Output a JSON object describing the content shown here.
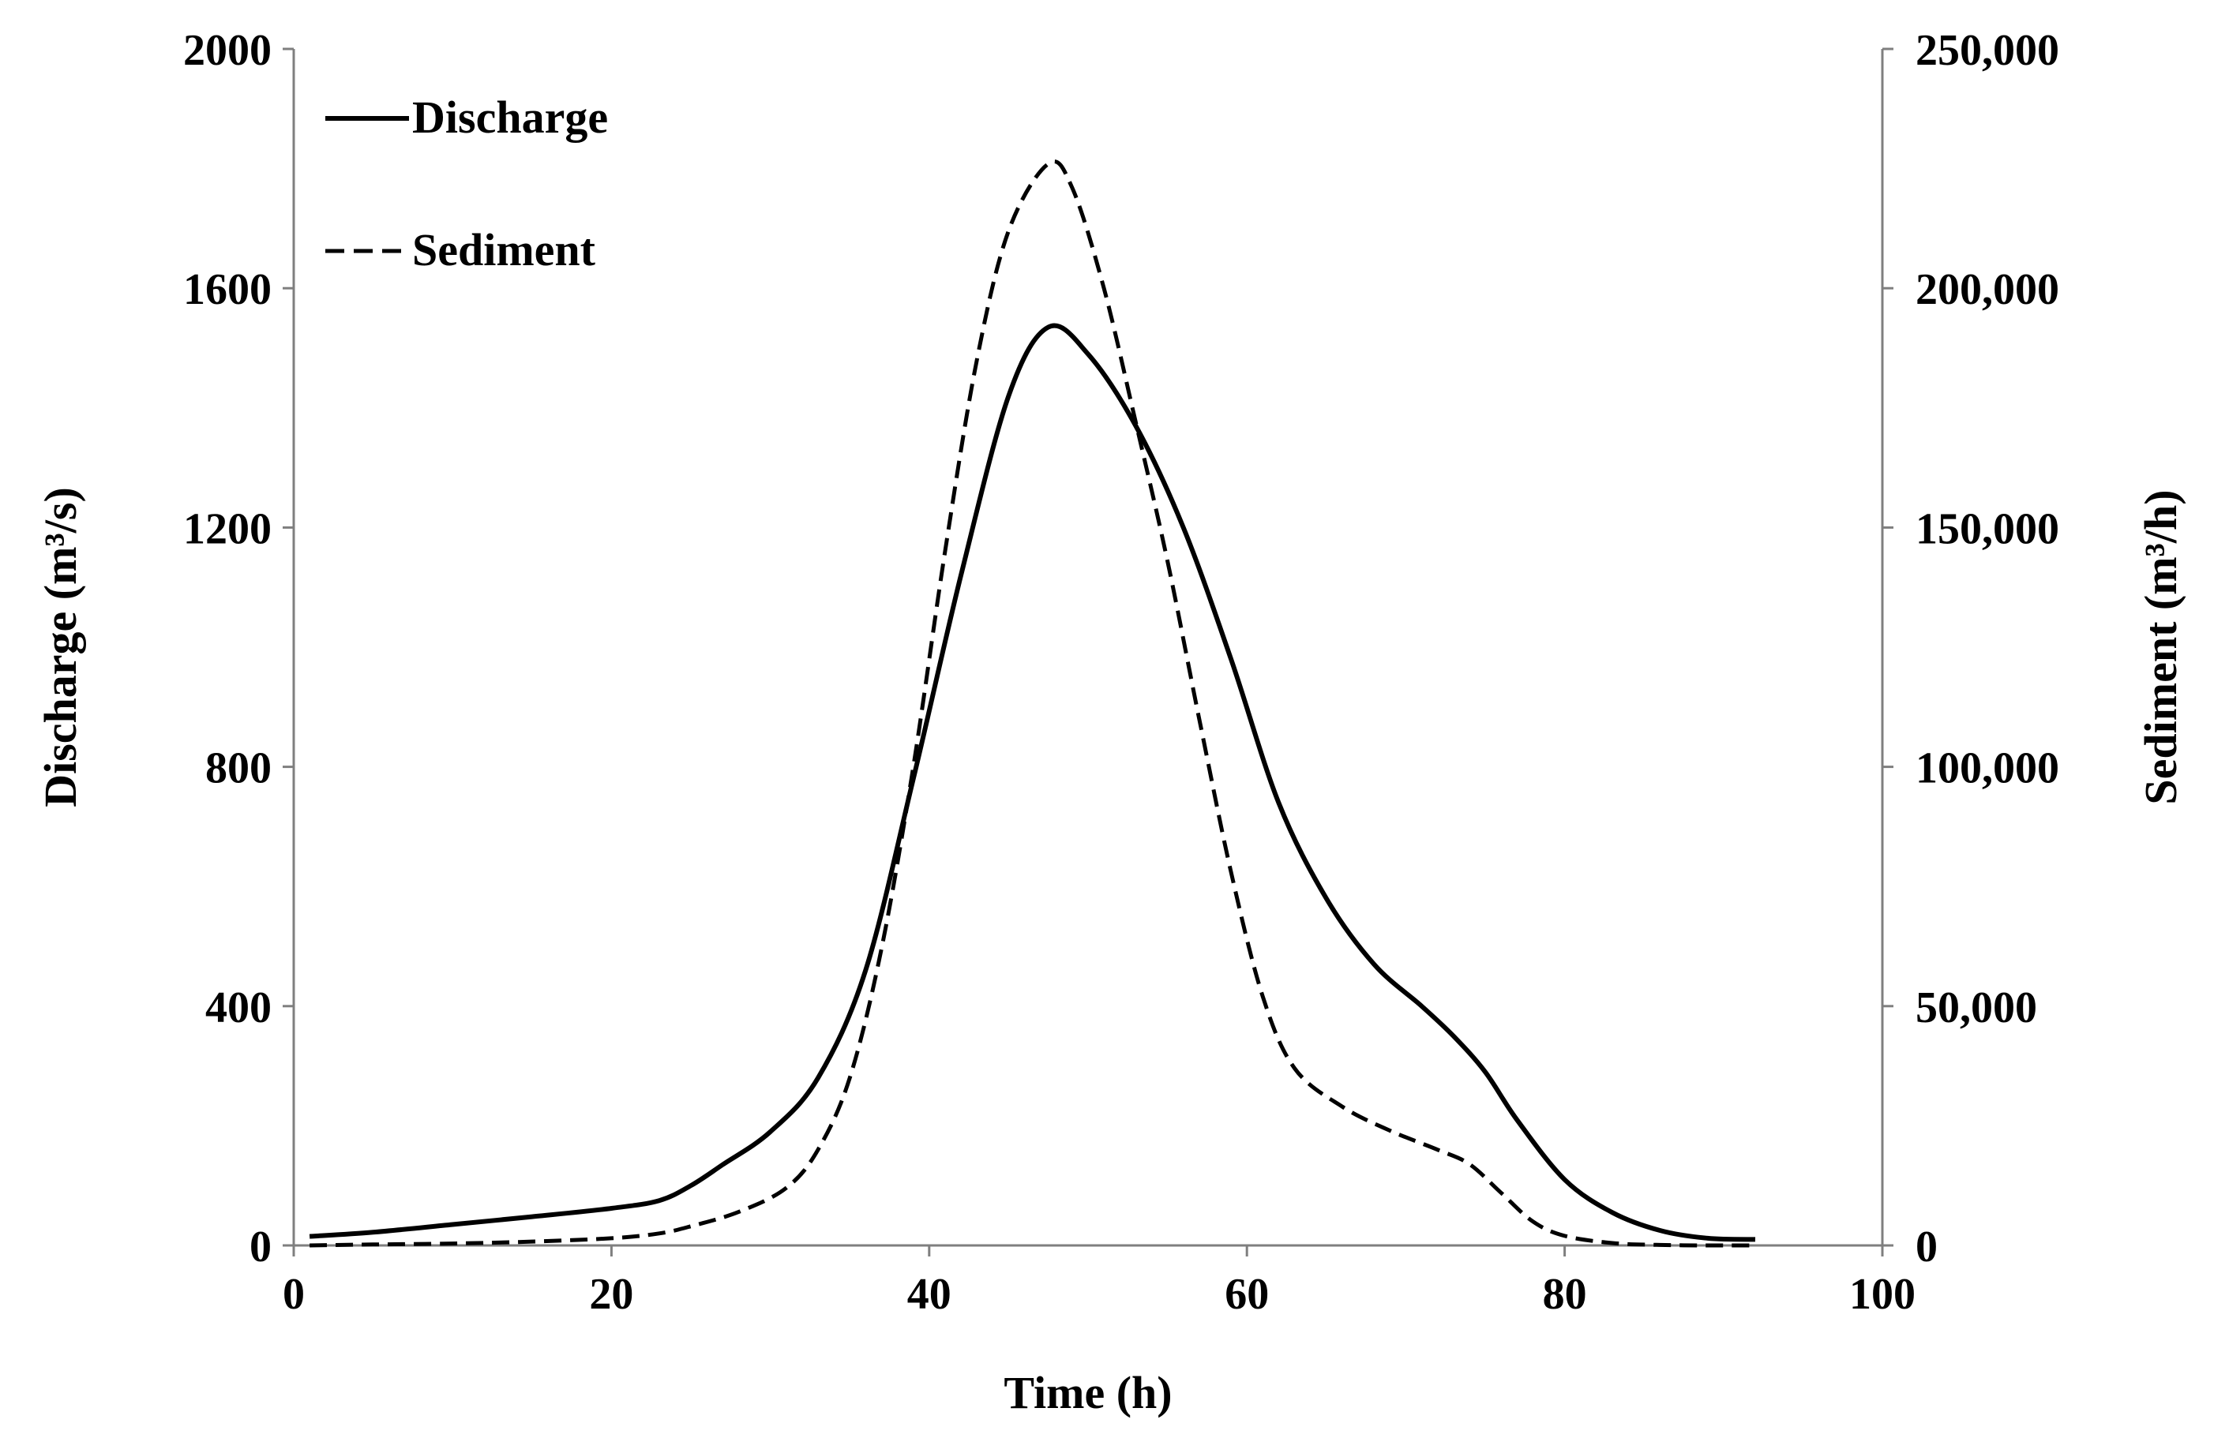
{
  "chart_data": {
    "type": "line",
    "title": "",
    "xlabel": "Time (h)",
    "ylabel_left": "Discharge (m³/s)",
    "ylabel_right": "Sediment (m³/h)",
    "xlim": [
      0,
      100
    ],
    "ylim_left": [
      0,
      2000
    ],
    "ylim_right": [
      0,
      250000
    ],
    "x_ticks": [
      "0",
      "20",
      "40",
      "60",
      "80",
      "100"
    ],
    "y_left_ticks": [
      "0",
      "400",
      "800",
      "1200",
      "1600",
      "2000"
    ],
    "y_right_ticks": [
      "0",
      "50,000",
      "100,000",
      "150,000",
      "200,000",
      "250,000"
    ],
    "grid": false,
    "legend_position": "top-left",
    "series": [
      {
        "name": "Discharge",
        "axis": "left",
        "style": "solid",
        "x": [
          1,
          5,
          10,
          15,
          20,
          23,
          25,
          27,
          30,
          33,
          36,
          39,
          42,
          45,
          47.5,
          50,
          53,
          56,
          59,
          62,
          65,
          68,
          71,
          73,
          75,
          77,
          80,
          83,
          86,
          89,
          92
        ],
        "values": [
          15,
          22,
          35,
          48,
          62,
          75,
          100,
          135,
          190,
          280,
          460,
          780,
          1120,
          1420,
          1535,
          1490,
          1370,
          1200,
          980,
          740,
          580,
          470,
          400,
          350,
          290,
          210,
          110,
          55,
          25,
          12,
          10
        ]
      },
      {
        "name": "Sediment",
        "axis": "right",
        "style": "dashed",
        "x": [
          1,
          5,
          10,
          15,
          20,
          23,
          25,
          28,
          31,
          33,
          35,
          37,
          39,
          41,
          43,
          45,
          47.5,
          49,
          51,
          53,
          55,
          57,
          59,
          61,
          63,
          66,
          69,
          72,
          74,
          76,
          78,
          80,
          83,
          86,
          89,
          92
        ],
        "values": [
          0,
          200,
          400,
          800,
          1500,
          2500,
          4000,
          7000,
          12000,
          20000,
          35000,
          62000,
          100000,
          145000,
          185000,
          212000,
          226000,
          221000,
          200000,
          172000,
          143000,
          110000,
          78000,
          52000,
          37000,
          29000,
          24000,
          20000,
          17000,
          11000,
          5000,
          2000,
          500,
          100,
          0,
          0
        ]
      }
    ]
  }
}
